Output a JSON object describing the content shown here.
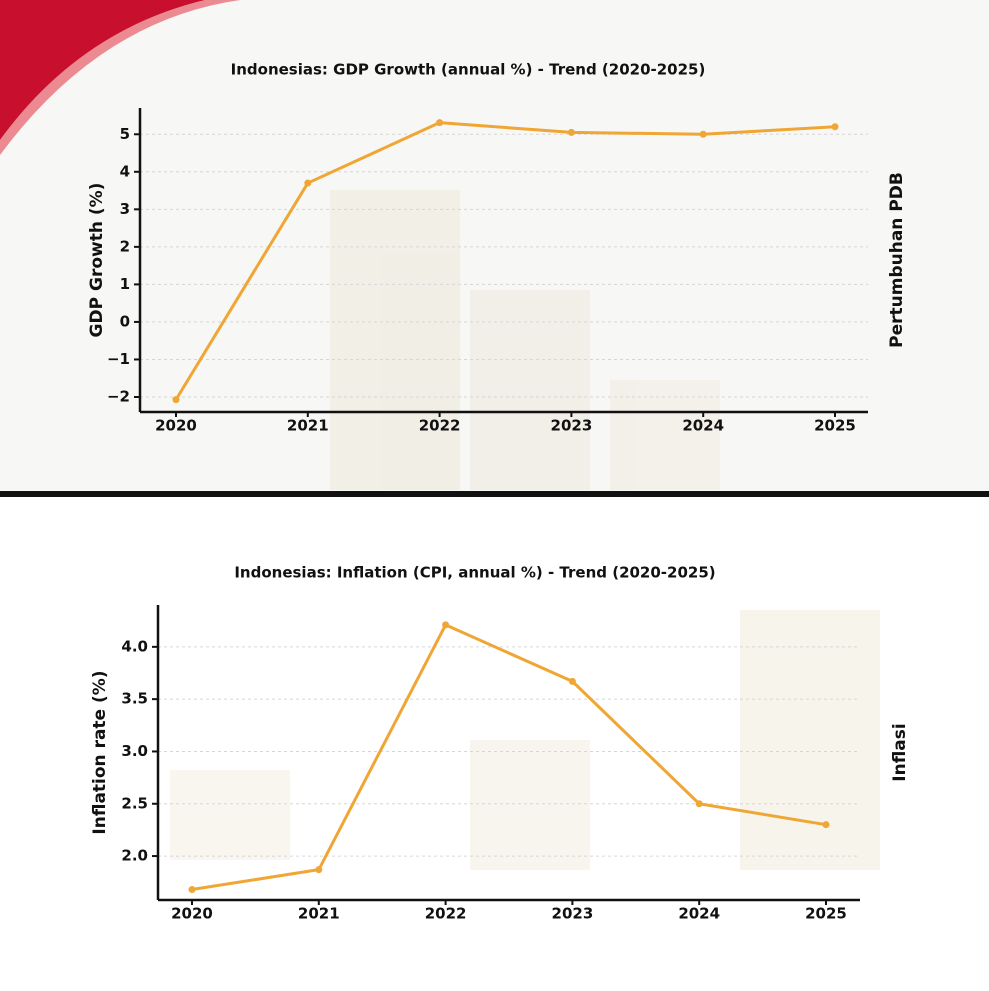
{
  "chart_data": [
    {
      "type": "line",
      "title": "Indonesias: GDP Growth (annual %) - Trend (2020-2025)",
      "y_label": "GDP Growth (%)",
      "side_label": "Pertumbuhan PDB",
      "categories": [
        "2020",
        "2021",
        "2022",
        "2023",
        "2024",
        "2025"
      ],
      "series": [
        {
          "color": "#f0a634",
          "values": [
            -2.07,
            3.7,
            5.31,
            5.05,
            5.0,
            5.2
          ]
        }
      ],
      "ylim": [
        -2.4,
        5.7
      ],
      "yticks": [
        {
          "value": -2,
          "label": "−2"
        },
        {
          "value": -1,
          "label": "−1"
        },
        0,
        1,
        2,
        3,
        4,
        5
      ],
      "grid": true
    },
    {
      "type": "line",
      "title": "Indonesias: Inflation (CPI, annual %) - Trend (2020-2025)",
      "y_label": "Inflation rate (%)",
      "side_label": "Inflasi",
      "categories": [
        "2020",
        "2021",
        "2022",
        "2023",
        "2024",
        "2025"
      ],
      "series": [
        {
          "color": "#f0a634",
          "values": [
            1.68,
            1.87,
            4.21,
            3.67,
            2.5,
            2.3
          ]
        }
      ],
      "ylim": [
        1.58,
        4.4
      ],
      "yticks": [
        {
          "value": 2,
          "label": "2.0"
        },
        {
          "value": 2.5,
          "label": "2.5"
        },
        {
          "value": 3,
          "label": "3.0"
        },
        {
          "value": 3.5,
          "label": "3.5"
        },
        {
          "value": 4,
          "label": "4.0"
        }
      ],
      "grid": true
    }
  ]
}
